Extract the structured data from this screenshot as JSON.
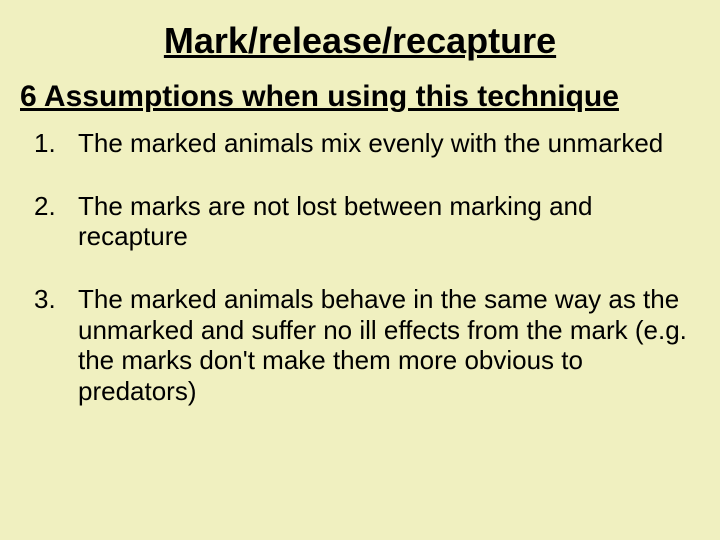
{
  "background_color": "#f0f0c0",
  "text_color": "#000000",
  "title": {
    "text": "Mark/release/recapture",
    "font_size": 36,
    "font_weight": "bold",
    "underline": true,
    "align": "center"
  },
  "subtitle": {
    "text": "6 Assumptions when using this technique",
    "font_size": 30,
    "underline": true
  },
  "list": {
    "type": "ordered",
    "font_size": 26,
    "item_spacing": 32,
    "items": [
      "The marked animals mix evenly with the unmarked",
      "The marks are not lost between marking and recapture",
      "The marked animals behave in the same way as the unmarked and suffer no ill effects from the mark (e.g. the marks don't make them more obvious to predators)"
    ]
  }
}
